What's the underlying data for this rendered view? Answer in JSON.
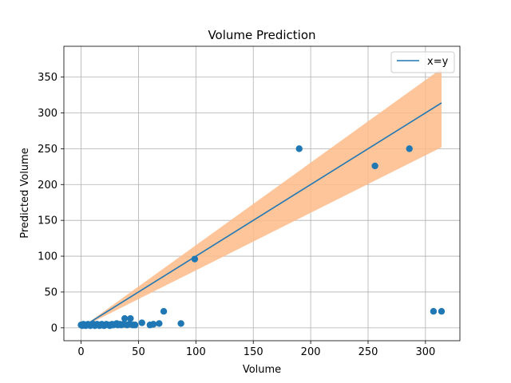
{
  "chart_data": {
    "type": "scatter",
    "title": "Volume Prediction",
    "xlabel": "Volume",
    "ylabel": "Predicted Volume",
    "xlim": [
      -15,
      330
    ],
    "ylim": [
      -18,
      393
    ],
    "xticks": [
      0,
      50,
      100,
      150,
      200,
      250,
      300
    ],
    "yticks": [
      0,
      50,
      100,
      150,
      200,
      250,
      300,
      350
    ],
    "grid": true,
    "legend": {
      "position": "top-right",
      "entries": [
        "x=y"
      ]
    },
    "colors": {
      "scatter": "#1f77b4",
      "line": "#1f77b4",
      "band": "#ffbb88"
    },
    "series": [
      {
        "kind": "scatter",
        "points": [
          [
            0,
            4
          ],
          [
            1,
            3
          ],
          [
            2,
            5
          ],
          [
            3,
            4
          ],
          [
            4,
            3
          ],
          [
            5,
            4
          ],
          [
            6,
            5
          ],
          [
            7,
            4
          ],
          [
            8,
            3
          ],
          [
            9,
            4
          ],
          [
            10,
            4
          ],
          [
            11,
            5
          ],
          [
            12,
            3
          ],
          [
            13,
            4
          ],
          [
            14,
            5
          ],
          [
            15,
            4
          ],
          [
            16,
            3
          ],
          [
            17,
            4
          ],
          [
            18,
            5
          ],
          [
            19,
            4
          ],
          [
            20,
            3
          ],
          [
            21,
            4
          ],
          [
            22,
            5
          ],
          [
            24,
            4
          ],
          [
            25,
            3
          ],
          [
            26,
            4
          ],
          [
            27,
            5
          ],
          [
            28,
            4
          ],
          [
            30,
            5
          ],
          [
            31,
            6
          ],
          [
            32,
            4
          ],
          [
            34,
            5
          ],
          [
            35,
            4
          ],
          [
            37,
            5
          ],
          [
            38,
            13
          ],
          [
            40,
            4
          ],
          [
            42,
            5
          ],
          [
            43,
            13
          ],
          [
            45,
            4
          ],
          [
            47,
            4
          ],
          [
            53,
            7
          ],
          [
            60,
            4
          ],
          [
            63,
            5
          ],
          [
            68,
            6
          ],
          [
            72,
            23
          ],
          [
            87,
            6
          ],
          [
            99,
            96
          ],
          [
            190,
            250
          ],
          [
            256,
            226
          ],
          [
            286,
            250
          ],
          [
            307,
            23
          ],
          [
            314,
            23
          ]
        ]
      },
      {
        "kind": "line",
        "name": "x=y",
        "points": [
          [
            0,
            0
          ],
          [
            314,
            314
          ]
        ],
        "band": {
          "x": [
            0,
            314
          ],
          "lower": [
            0,
            252
          ],
          "upper": [
            0,
            362
          ]
        }
      }
    ]
  }
}
